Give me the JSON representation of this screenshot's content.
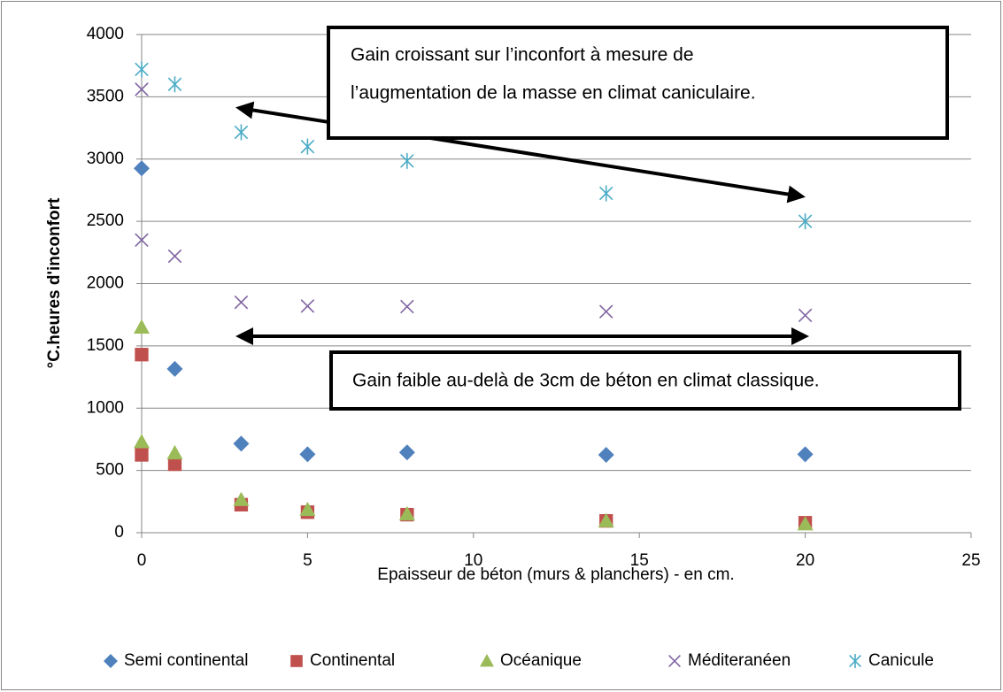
{
  "chart_data": {
    "type": "scatter",
    "x_label": "Epaisseur de béton (murs & planchers) - en cm.",
    "y_label": "°C.heures d'inconfort",
    "xlim": [
      0,
      25
    ],
    "xticks": [
      0,
      5,
      10,
      15,
      20,
      25
    ],
    "ylim": [
      0,
      4000
    ],
    "yticks": [
      0,
      500,
      1000,
      1500,
      2000,
      2500,
      3000,
      3500,
      4000
    ],
    "grid": true,
    "legend": "bottom",
    "series": [
      {
        "name": "Semi continental",
        "color": "#4f81bd",
        "marker": "diamond",
        "x": [
          0,
          1,
          3,
          5,
          8,
          14,
          20
        ],
        "values": [
          2925,
          1315,
          715,
          630,
          645,
          625,
          630
        ]
      },
      {
        "name": "Continental",
        "color": "#c0504d",
        "marker": "square",
        "x": [
          0,
          0,
          1,
          3,
          5,
          8,
          14,
          20
        ],
        "values": [
          1430,
          625,
          550,
          225,
          165,
          145,
          95,
          80
        ]
      },
      {
        "name": "Océanique",
        "color": "#9bbb59",
        "marker": "triangle",
        "x": [
          0,
          0,
          1,
          3,
          5,
          8,
          14,
          20
        ],
        "values": [
          1650,
          730,
          640,
          265,
          185,
          150,
          95,
          70
        ]
      },
      {
        "name": "Méditeranéen",
        "color": "#8064a2",
        "marker": "x",
        "x": [
          0,
          0,
          1,
          3,
          5,
          8,
          14,
          20
        ],
        "values": [
          3560,
          2350,
          2220,
          1850,
          1820,
          1815,
          1775,
          1745
        ]
      },
      {
        "name": "Canicule",
        "color": "#4bacc6",
        "marker": "star",
        "x": [
          0,
          1,
          3,
          5,
          8,
          14,
          20
        ],
        "values": [
          3720,
          3600,
          3215,
          3100,
          2985,
          2725,
          2500
        ]
      }
    ],
    "annotations": [
      {
        "lines": [
          "Gain croissant sur l’inconfort à mesure de",
          "l’augmentation de la masse en climat caniculaire."
        ]
      },
      {
        "lines": [
          "Gain faible au-delà de 3cm de béton en climat classique."
        ]
      }
    ]
  }
}
